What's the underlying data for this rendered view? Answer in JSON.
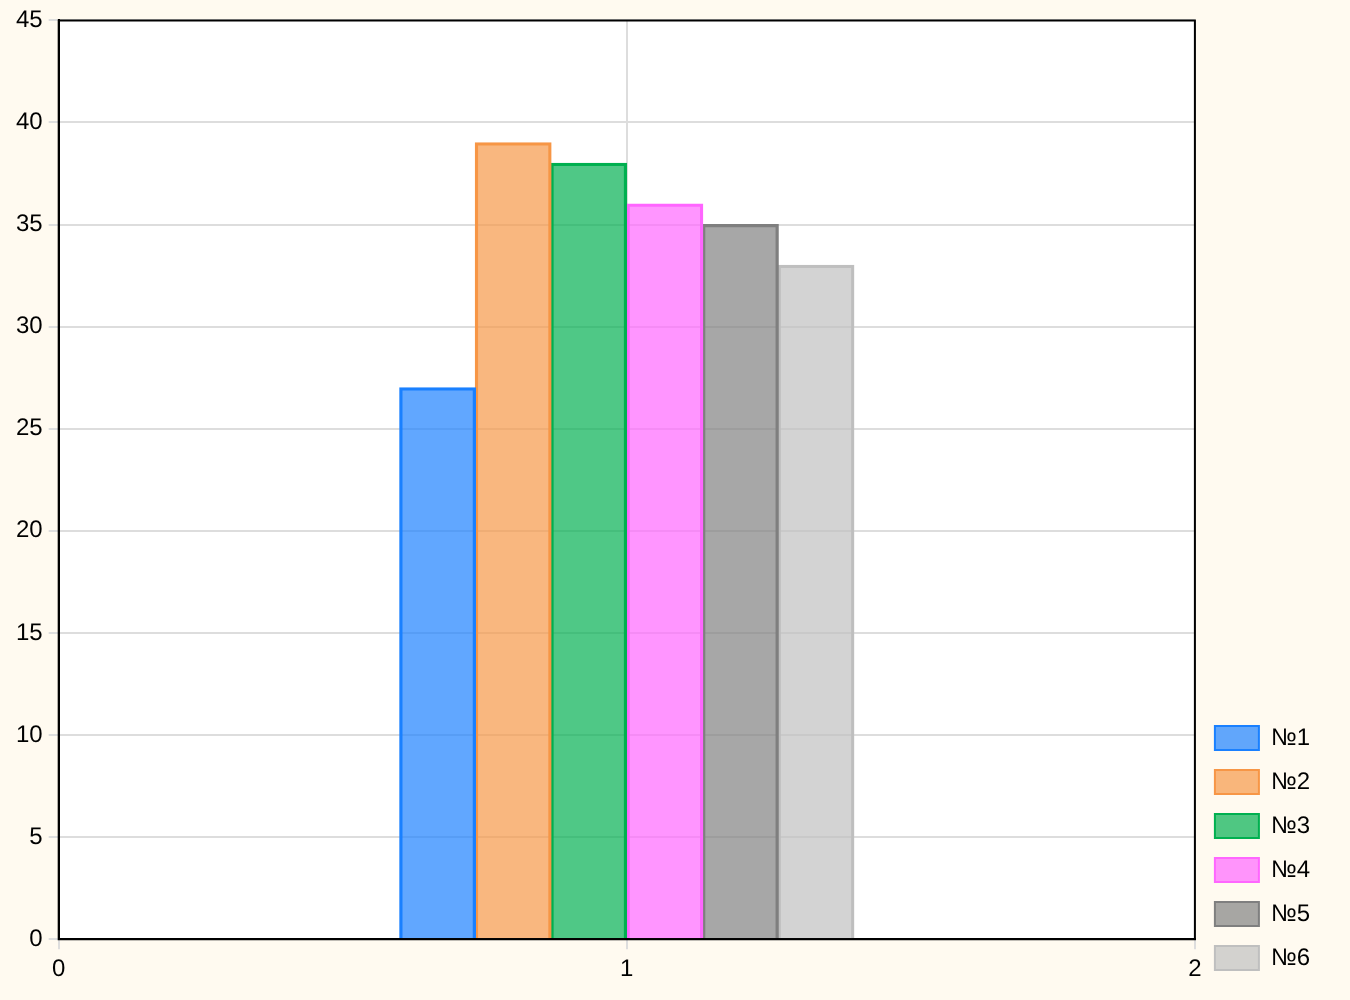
{
  "chart_data": {
    "type": "bar",
    "xlim": [
      0,
      2
    ],
    "xticks": [
      0,
      1,
      2
    ],
    "ylim": [
      0,
      45
    ],
    "yticks": [
      0,
      5,
      10,
      15,
      20,
      25,
      30,
      35,
      40,
      45
    ],
    "grid": true,
    "legend": "bottom right",
    "series": [
      {
        "name": "№1",
        "color": "#1a80ff",
        "x": [
          0.667
        ],
        "values": [
          27
        ]
      },
      {
        "name": "№2",
        "color": "#f79646",
        "x": [
          0.8
        ],
        "values": [
          39
        ]
      },
      {
        "name": "№3",
        "color": "#00b050",
        "x": [
          0.933
        ],
        "values": [
          38
        ]
      },
      {
        "name": "№4",
        "color": "#ff66ff",
        "x": [
          1.067
        ],
        "values": [
          36
        ]
      },
      {
        "name": "№5",
        "color": "#7f7f7f",
        "x": [
          1.2
        ],
        "values": [
          35
        ]
      },
      {
        "name": "№6",
        "color": "#bfbfbf",
        "x": [
          1.333
        ],
        "values": [
          33
        ]
      }
    ]
  }
}
